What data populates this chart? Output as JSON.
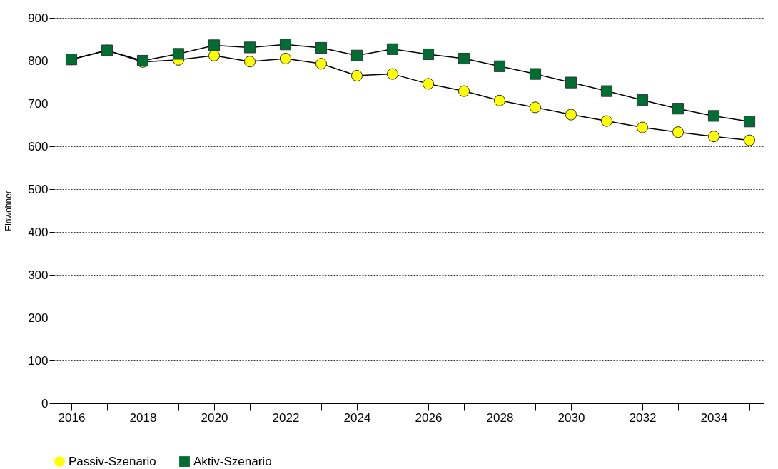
{
  "chart_data": {
    "type": "line",
    "ylabel": "Einwohner",
    "x": [
      2016,
      2017,
      2018,
      2019,
      2020,
      2021,
      2022,
      2023,
      2024,
      2025,
      2026,
      2027,
      2028,
      2029,
      2030,
      2031,
      2032,
      2033,
      2034,
      2035
    ],
    "series": [
      {
        "name": "Passiv-Szenario",
        "color": "#ffff00",
        "marker": "circle",
        "values": [
          803,
          824,
          797,
          802,
          812,
          798,
          805,
          793,
          765,
          769,
          746,
          729,
          707,
          691,
          674,
          659,
          644,
          633,
          623,
          614
        ]
      },
      {
        "name": "Aktiv-Szenario",
        "color": "#006e33",
        "marker": "square",
        "values": [
          803,
          824,
          800,
          816,
          836,
          831,
          838,
          830,
          812,
          827,
          815,
          805,
          787,
          769,
          749,
          729,
          708,
          688,
          671,
          658
        ]
      }
    ],
    "xlim": [
      2015.5,
      2035.4
    ],
    "xticks": [
      2016,
      {
        "value": 2017,
        "label": null
      },
      2018,
      {
        "value": 2019,
        "label": null
      },
      2020,
      {
        "value": 2021,
        "label": null
      },
      2022,
      {
        "value": 2023,
        "label": null
      },
      2024,
      {
        "value": 2025,
        "label": null
      },
      2026,
      {
        "value": 2027,
        "label": null
      },
      2028,
      {
        "value": 2029,
        "label": null
      },
      2030,
      {
        "value": 2031,
        "label": null
      },
      2032,
      {
        "value": 2033,
        "label": null
      },
      2034,
      {
        "value": 2035,
        "label": null
      }
    ],
    "ylim": [
      0,
      900
    ],
    "yticks": [
      0,
      100,
      200,
      300,
      400,
      500,
      600,
      700,
      800,
      900
    ],
    "grid": "y",
    "legend": "bottom",
    "line_style": "solid"
  }
}
